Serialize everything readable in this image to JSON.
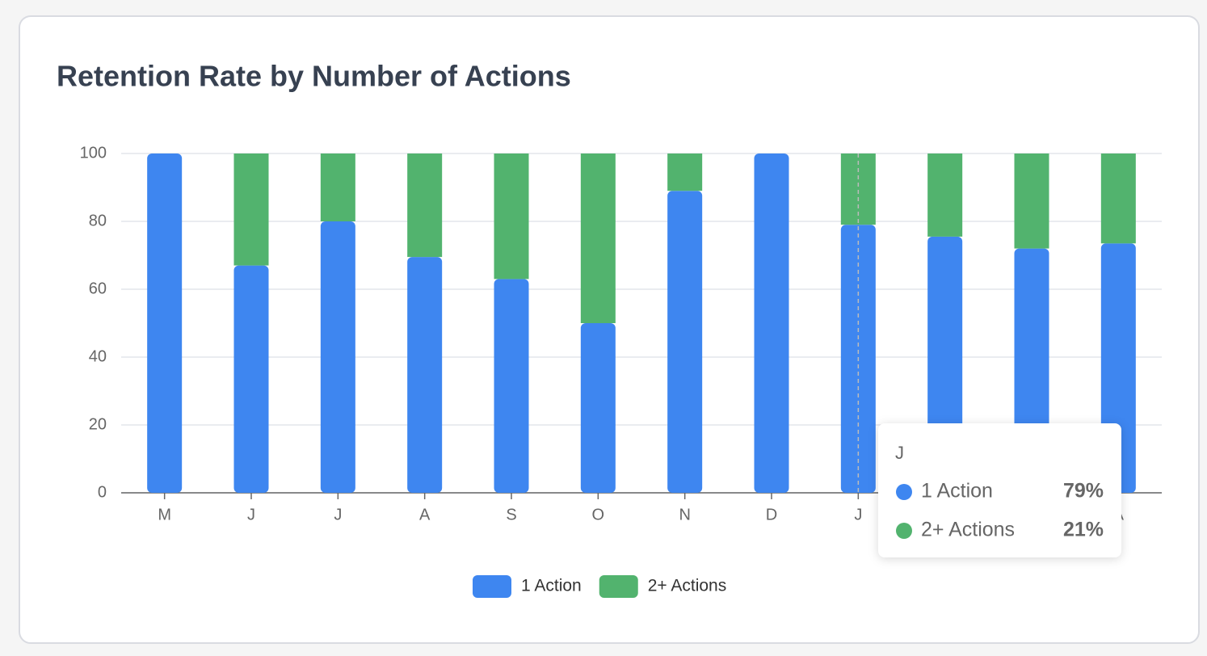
{
  "chart_data": {
    "type": "stacked_bar",
    "title": "Retention Rate by Number of Actions",
    "categories": [
      "M",
      "J",
      "J",
      "A",
      "S",
      "O",
      "N",
      "D",
      "J",
      null,
      null,
      "A"
    ],
    "series": [
      {
        "name": "1 Action",
        "color": "#3e86f0",
        "values": [
          100,
          67,
          80,
          69.5,
          63,
          50,
          89,
          100,
          79,
          75.5,
          72,
          73.5
        ]
      },
      {
        "name": "2+ Actions",
        "color": "#52b36e",
        "values": [
          0,
          33,
          20,
          30.5,
          37,
          50,
          11,
          0,
          21,
          24.5,
          28,
          26.5
        ]
      }
    ],
    "ylim": [
      0,
      100
    ],
    "yticks": [
      0,
      20,
      40,
      60,
      80,
      100
    ],
    "grid": true,
    "tooltip": {
      "title": "J",
      "values": [
        79,
        21
      ],
      "value_labels": [
        "79%",
        "21%"
      ]
    }
  }
}
